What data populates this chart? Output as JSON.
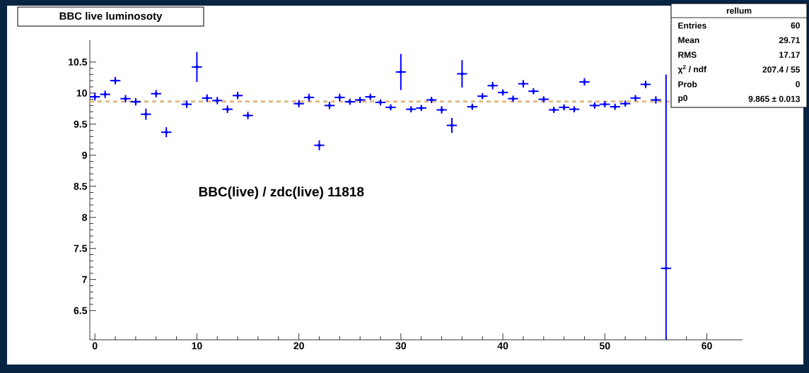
{
  "chart_data": {
    "type": "scatter",
    "title": "BBC live luminosoty",
    "annotations": [
      "BBC(live) / zdc(live) 11818",
      "rellum",
      "Entries",
      "60",
      "Mean",
      "29.71",
      "RMS",
      "17.17",
      "χ$^{2}$ / ndf",
      "207.4 / 55",
      "Prob",
      "0",
      "p0",
      "9.865 ± 0.013"
    ],
    "x": [
      0,
      1,
      2,
      3,
      4,
      5,
      6,
      7,
      9,
      10,
      11,
      12,
      13,
      14,
      15,
      20,
      21,
      22,
      23,
      24,
      25,
      26,
      27,
      28,
      29,
      30,
      31,
      32,
      33,
      34,
      35,
      36,
      37,
      38,
      39,
      40,
      41,
      42,
      43,
      44,
      45,
      46,
      47,
      48,
      49,
      50,
      51,
      52,
      53,
      54,
      55,
      56
    ],
    "values": [
      9.94,
      9.98,
      10.2,
      9.91,
      9.86,
      9.66,
      9.99,
      9.37,
      9.82,
      10.42,
      9.92,
      9.88,
      9.74,
      9.96,
      9.64,
      9.83,
      9.93,
      9.16,
      9.8,
      9.93,
      9.86,
      9.89,
      9.94,
      9.85,
      9.77,
      10.34,
      9.74,
      9.76,
      9.89,
      9.73,
      9.48,
      10.31,
      9.78,
      9.95,
      10.12,
      10.01,
      9.91,
      10.15,
      10.03,
      9.9,
      9.73,
      9.77,
      9.74,
      10.18,
      9.8,
      9.82,
      9.78,
      9.83,
      9.92,
      10.14,
      9.89,
      7.18
    ],
    "errors": [
      0.06,
      0.06,
      0.06,
      0.06,
      0.06,
      0.09,
      0.06,
      0.08,
      0.06,
      0.24,
      0.06,
      0.06,
      0.06,
      0.06,
      0.06,
      0.06,
      0.06,
      0.08,
      0.06,
      0.06,
      0.05,
      0.05,
      0.05,
      0.05,
      0.05,
      0.29,
      0.05,
      0.05,
      0.05,
      0.06,
      0.12,
      0.22,
      0.05,
      0.05,
      0.06,
      0.05,
      0.05,
      0.06,
      0.05,
      0.05,
      0.05,
      0.05,
      0.05,
      0.06,
      0.05,
      0.05,
      0.05,
      0.05,
      0.05,
      0.06,
      0.06,
      [
        6.03,
        10.3
      ]
    ],
    "xerrors": [
      0.5,
      0.5,
      0.5,
      0.5,
      0.5,
      0.5,
      0.5,
      0.5,
      0.5,
      0.5,
      0.5,
      0.5,
      0.5,
      0.5,
      0.5,
      0.5,
      0.5,
      0.5,
      0.5,
      0.5,
      0.5,
      0.5,
      0.5,
      0.5,
      0.5,
      0.5,
      0.5,
      0.5,
      0.5,
      0.5,
      0.5,
      0.5,
      0.5,
      0.5,
      0.5,
      0.5,
      0.5,
      0.5,
      0.5,
      0.5,
      0.5,
      0.5,
      0.5,
      0.5,
      0.5,
      0.5,
      0.5,
      0.5,
      0.5,
      0.5,
      0.5,
      0.5
    ],
    "color": "#0000ff",
    "xlim": [
      -0.5,
      63.5
    ],
    "ylim": [
      6.03,
      10.85
    ],
    "xticks": [
      0,
      10,
      20,
      30,
      40,
      50,
      60
    ],
    "yticks": [
      6.5,
      7,
      7.5,
      8,
      8.5,
      9,
      9.5,
      10,
      10.5
    ],
    "ref_lines": [
      {
        "axis": "y",
        "value": 9.865,
        "color": "#e0b880",
        "line_style": "dashed"
      }
    ]
  }
}
